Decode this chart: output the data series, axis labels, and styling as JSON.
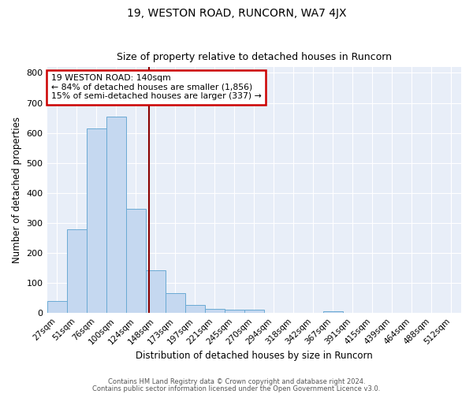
{
  "title": "19, WESTON ROAD, RUNCORN, WA7 4JX",
  "subtitle": "Size of property relative to detached houses in Runcorn",
  "xlabel": "Distribution of detached houses by size in Runcorn",
  "ylabel": "Number of detached properties",
  "categories": [
    "27sqm",
    "51sqm",
    "76sqm",
    "100sqm",
    "124sqm",
    "148sqm",
    "173sqm",
    "197sqm",
    "221sqm",
    "245sqm",
    "270sqm",
    "294sqm",
    "318sqm",
    "342sqm",
    "367sqm",
    "391sqm",
    "415sqm",
    "439sqm",
    "464sqm",
    "488sqm",
    "512sqm"
  ],
  "values": [
    40,
    278,
    615,
    655,
    348,
    143,
    65,
    28,
    13,
    10,
    10,
    0,
    0,
    0,
    7,
    0,
    0,
    0,
    0,
    0,
    0
  ],
  "bar_color": "#c5d8f0",
  "bar_edge_color": "#6aaad4",
  "plot_bg_color": "#e8eef8",
  "fig_bg_color": "#ffffff",
  "grid_color": "#ffffff",
  "annotation_text": "19 WESTON ROAD: 140sqm\n← 84% of detached houses are smaller (1,856)\n15% of semi-detached houses are larger (337) →",
  "annotation_box_color": "#ffffff",
  "annotation_box_edge_color": "#cc0000",
  "ylim": [
    0,
    820
  ],
  "yticks": [
    0,
    100,
    200,
    300,
    400,
    500,
    600,
    700,
    800
  ],
  "footer_line1": "Contains HM Land Registry data © Crown copyright and database right 2024.",
  "footer_line2": "Contains public sector information licensed under the Open Government Licence v3.0."
}
